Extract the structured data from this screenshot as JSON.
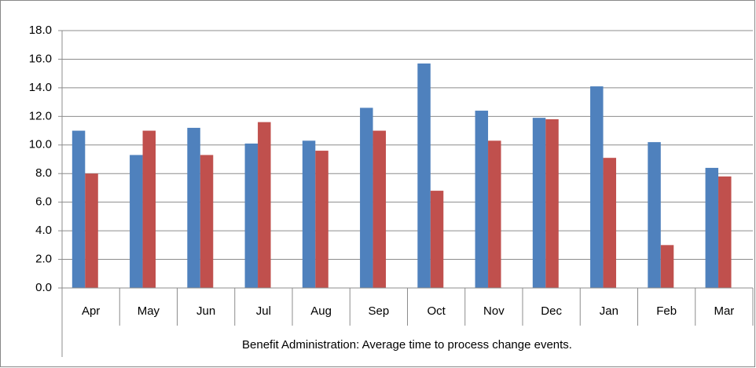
{
  "chart_data": {
    "type": "bar",
    "x_label": "Benefit Administration: Average time to process change events.",
    "categories": [
      "Apr",
      "May",
      "Jun",
      "Jul",
      "Aug",
      "Sep",
      "Oct",
      "Nov",
      "Dec",
      "Jan",
      "Feb",
      "Mar"
    ],
    "series": [
      {
        "color": "#4f81bd",
        "values": [
          11.0,
          9.3,
          11.2,
          10.1,
          10.3,
          12.6,
          15.7,
          12.4,
          11.9,
          14.1,
          10.2,
          8.4
        ]
      },
      {
        "color": "#c0504d",
        "values": [
          8.0,
          11.0,
          9.3,
          11.6,
          9.6,
          11.0,
          6.8,
          10.3,
          11.8,
          9.1,
          3.0,
          7.8
        ]
      }
    ],
    "ylim": [
      0,
      18
    ],
    "yticks": [
      {
        "value": 0,
        "label": "0.0"
      },
      {
        "value": 2,
        "label": "2.0"
      },
      {
        "value": 4,
        "label": "4.0"
      },
      {
        "value": 6,
        "label": "6.0"
      },
      {
        "value": 8,
        "label": "8.0"
      },
      {
        "value": 10,
        "label": "10.0"
      },
      {
        "value": 12,
        "label": "12.0"
      },
      {
        "value": 14,
        "label": "14.0"
      },
      {
        "value": 16,
        "label": "16.0"
      },
      {
        "value": 18,
        "label": "18.0"
      }
    ],
    "grid": true
  }
}
